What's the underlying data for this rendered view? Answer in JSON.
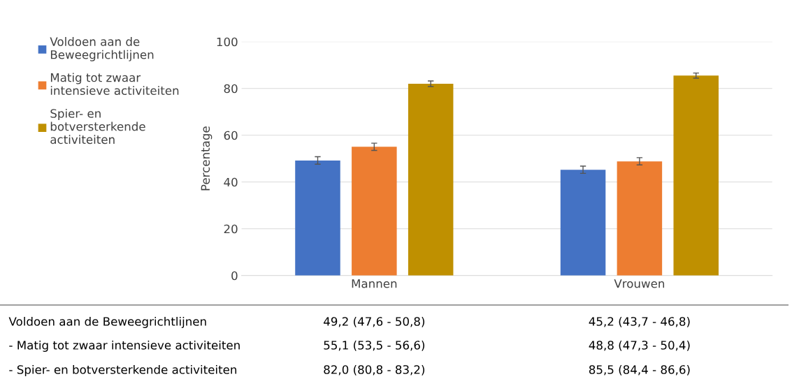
{
  "chart_data": {
    "type": "bar",
    "ylabel": "Percentage",
    "categories": [
      "Mannen",
      "Vrouwen"
    ],
    "series": [
      {
        "name": "Voldoen aan de\nBeweegrichtlijnen",
        "color": "#4472c4",
        "values": [
          49.2,
          45.2
        ],
        "errors": [
          [
            47.6,
            50.8
          ],
          [
            43.7,
            46.8
          ]
        ],
        "value_labels": [
          "49,2 (47,6 - 50,8)",
          "45,2 (43,7 - 46,8)"
        ]
      },
      {
        "name": "Matig tot zwaar\nintensieve activiteiten",
        "color": "#ed7d31",
        "values": [
          55.1,
          48.8
        ],
        "errors": [
          [
            53.5,
            56.6
          ],
          [
            47.3,
            50.4
          ]
        ],
        "value_labels": [
          "55,1 (53,5 - 56,6)",
          "48,8 (47,3 - 50,4)"
        ]
      },
      {
        "name": "Spier- en\nbotversterkende\nactiviteiten",
        "color": "#bf9000",
        "values": [
          82.0,
          85.5
        ],
        "errors": [
          [
            80.8,
            83.2
          ],
          [
            84.4,
            86.6
          ]
        ],
        "value_labels": [
          "82,0 (80,8 - 83,2)",
          "85,5 (84,4 - 86,6)"
        ]
      }
    ],
    "annotations": [
      "Voldoen aan de Beweegrichtlijnen",
      "- Matig tot zwaar intensieve activiteiten",
      "- Spier- en botversterkende activiteiten"
    ],
    "ylim": [
      0,
      100
    ],
    "yticks": [
      0,
      20,
      40,
      60,
      80,
      100
    ],
    "grid": "y",
    "legend": "left"
  }
}
